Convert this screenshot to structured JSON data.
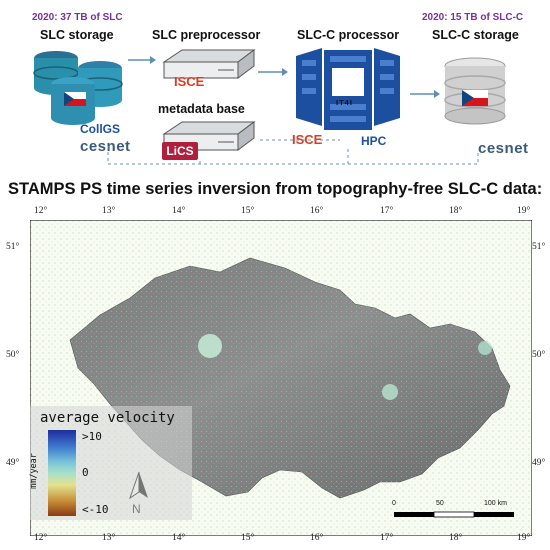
{
  "top": {
    "slc_storage_note": "2020: 37 TB of SLC",
    "slc_storage_title": "SLC storage",
    "slc_preprocessor_title": "SLC preprocessor",
    "slcc_processor_title": "SLC-C processor",
    "slcc_storage_note": "2020: 15 TB of SLC-C",
    "slcc_storage_title": "SLC-C storage",
    "metadata_title": "metadata base",
    "isce_label_1": "ISCE",
    "isce_label_2": "ISCE",
    "lics_label": "LiCS",
    "it4i_label": "IT4I",
    "hpc_label": "HPC",
    "collgs_label": "CollGS",
    "cesnet_label_1": "cesnet",
    "cesnet_label_2": "cesnet"
  },
  "main_title": "STAMPS PS time series inversion from topography-free SLC-C data:",
  "map": {
    "lon_ticks": [
      "12°",
      "13°",
      "14°",
      "15°",
      "16°",
      "17°",
      "18°",
      "19°"
    ],
    "lat_ticks": [
      "51°",
      "50°",
      "49°"
    ],
    "north_label": "N",
    "scale_labels": [
      "0",
      "50",
      "100 km"
    ]
  },
  "legend": {
    "title": "average velocity",
    "unit": "mm/year",
    "ticks": [
      ">10",
      "0",
      "<-10"
    ]
  },
  "colors": {
    "accent_purple": "#7a2f9b",
    "isce_red": "#e03a1e",
    "hpc_blue": "#1d4fa0",
    "db_teal": "#2a8fa8",
    "legend_top": "#1f2c9e",
    "legend_mid": "#a7e0c9",
    "legend_bottom": "#8a3b12"
  }
}
